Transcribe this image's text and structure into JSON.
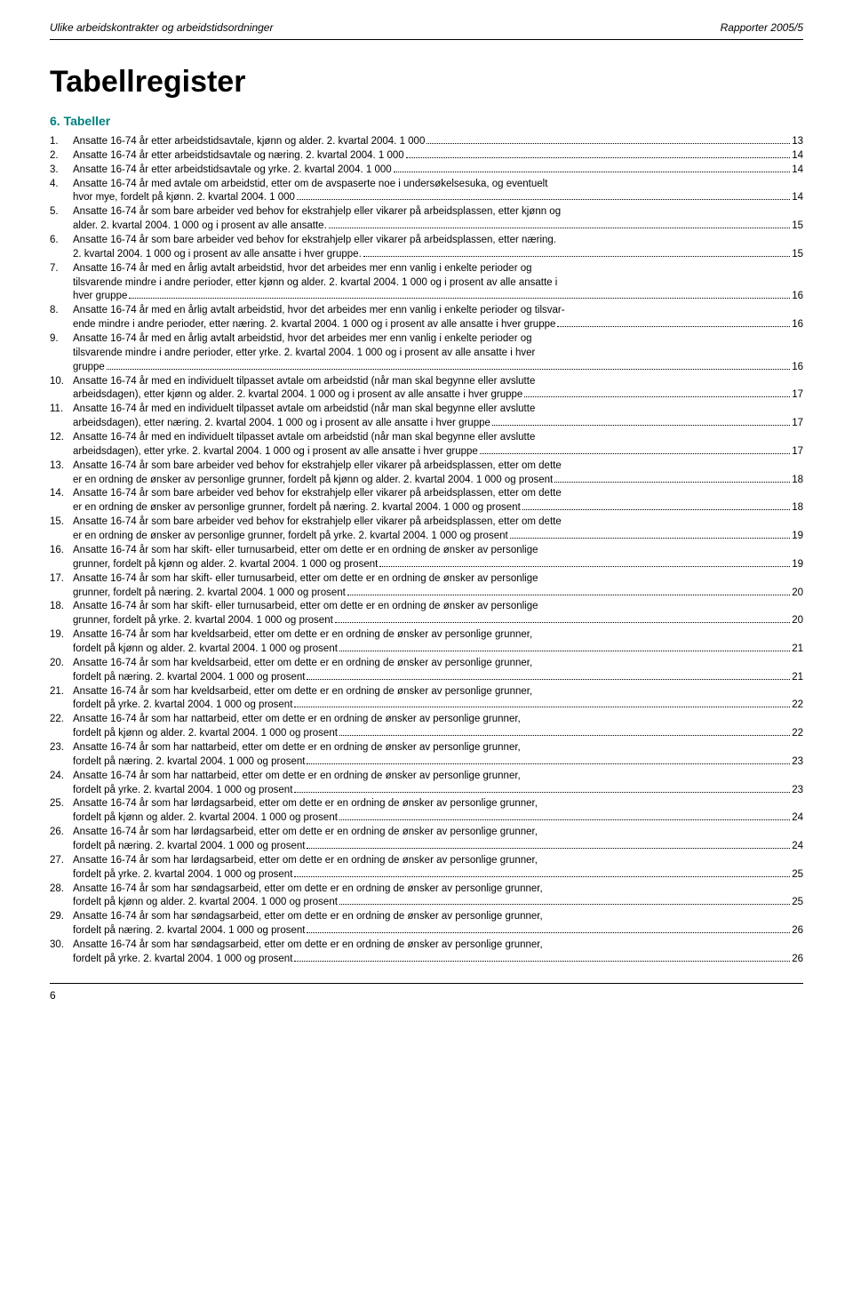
{
  "header": {
    "left": "Ulike arbeidskontrakter og arbeidstidsordninger",
    "right": "Rapporter 2005/5"
  },
  "title": "Tabellregister",
  "section_heading": "6.   Tabeller",
  "page_number": "6",
  "entries": [
    {
      "num": "1.",
      "lines": [
        "Ansatte 16-74 år etter arbeidstidsavtale, kjønn og alder. 2. kvartal 2004. 1 000"
      ],
      "page": "13"
    },
    {
      "num": "2.",
      "lines": [
        "Ansatte 16-74 år etter arbeidstidsavtale og næring. 2. kvartal 2004. 1 000"
      ],
      "page": "14"
    },
    {
      "num": "3.",
      "lines": [
        "Ansatte 16-74 år etter arbeidstidsavtale og yrke. 2. kvartal 2004. 1 000"
      ],
      "page": "14"
    },
    {
      "num": "4.",
      "lines": [
        "Ansatte 16-74 år med avtale om arbeidstid, etter om de avspaserte noe i undersøkelsesuka, og eventuelt",
        "hvor mye, fordelt på kjønn. 2. kvartal 2004. 1 000"
      ],
      "page": "14"
    },
    {
      "num": "5.",
      "lines": [
        "Ansatte 16-74 år som bare arbeider ved behov for ekstrahjelp eller vikarer på arbeidsplassen, etter kjønn og",
        "alder. 2. kvartal 2004. 1 000 og i prosent av alle ansatte."
      ],
      "page": "15"
    },
    {
      "num": "6.",
      "lines": [
        "Ansatte 16-74 år som bare arbeider ved behov for ekstrahjelp eller vikarer på arbeidsplassen, etter næring.",
        "2. kvartal 2004. 1 000 og i prosent av alle ansatte i hver gruppe."
      ],
      "page": "15"
    },
    {
      "num": "7.",
      "lines": [
        "Ansatte 16-74 år med en årlig avtalt arbeidstid, hvor det arbeides mer enn vanlig i enkelte perioder og",
        "tilsvarende mindre i andre perioder, etter kjønn og alder. 2. kvartal 2004. 1 000 og i prosent av alle ansatte i",
        "hver gruppe"
      ],
      "page": "16"
    },
    {
      "num": "8.",
      "lines": [
        "Ansatte 16-74 år med en årlig avtalt arbeidstid, hvor det arbeides mer enn vanlig i enkelte perioder og tilsvar-",
        "ende mindre i andre perioder, etter næring. 2. kvartal 2004. 1 000 og i prosent av alle ansatte i hver gruppe"
      ],
      "page": "16"
    },
    {
      "num": "9.",
      "lines": [
        "Ansatte 16-74 år med en årlig avtalt arbeidstid, hvor det arbeides mer enn vanlig i enkelte perioder og",
        "tilsvarende mindre i andre perioder, etter yrke. 2. kvartal 2004. 1 000 og i prosent av alle ansatte i hver",
        "gruppe"
      ],
      "page": "16"
    },
    {
      "num": "10.",
      "lines": [
        "Ansatte 16-74 år med en individuelt tilpasset avtale om arbeidstid (når man skal begynne eller avslutte",
        "arbeidsdagen), etter kjønn og alder. 2. kvartal 2004. 1 000 og i prosent av alle ansatte i hver gruppe"
      ],
      "page": "17"
    },
    {
      "num": "11.",
      "lines": [
        "Ansatte 16-74 år med en individuelt tilpasset avtale om arbeidstid (når man skal begynne eller avslutte",
        "arbeidsdagen), etter næring. 2. kvartal 2004. 1 000 og i prosent av alle ansatte i hver gruppe"
      ],
      "page": "17"
    },
    {
      "num": "12.",
      "lines": [
        "Ansatte 16-74 år med en individuelt tilpasset avtale om arbeidstid (når man skal begynne eller avslutte",
        "arbeidsdagen), etter yrke. 2. kvartal 2004. 1 000 og i prosent av alle ansatte i hver gruppe"
      ],
      "page": "17"
    },
    {
      "num": "13.",
      "lines": [
        "Ansatte 16-74 år som bare arbeider ved behov for ekstrahjelp eller vikarer på arbeidsplassen, etter om dette",
        "er en ordning de ønsker av personlige grunner, fordelt på kjønn og alder. 2. kvartal 2004. 1 000 og prosent"
      ],
      "page": "18"
    },
    {
      "num": "14.",
      "lines": [
        "Ansatte 16-74 år som bare arbeider ved behov for ekstrahjelp eller vikarer på arbeidsplassen, etter om dette",
        "er en ordning de ønsker av personlige grunner, fordelt på næring. 2. kvartal 2004. 1 000 og prosent"
      ],
      "page": "18"
    },
    {
      "num": "15.",
      "lines": [
        "Ansatte 16-74 år som bare arbeider ved behov for ekstrahjelp eller vikarer på arbeidsplassen, etter om dette",
        "er en ordning de ønsker av personlige grunner, fordelt på yrke. 2. kvartal 2004. 1 000 og prosent"
      ],
      "page": "19"
    },
    {
      "num": "16.",
      "lines": [
        "Ansatte 16-74 år som har skift- eller turnusarbeid, etter om dette er en ordning de ønsker av personlige",
        "grunner, fordelt på kjønn og alder. 2. kvartal 2004. 1 000 og prosent"
      ],
      "page": "19"
    },
    {
      "num": "17.",
      "lines": [
        "Ansatte 16-74 år som har skift- eller turnusarbeid, etter om dette er en ordning de ønsker av personlige",
        "grunner, fordelt på næring. 2. kvartal 2004. 1 000 og prosent"
      ],
      "page": "20"
    },
    {
      "num": "18.",
      "lines": [
        "Ansatte 16-74 år som har skift- eller turnusarbeid, etter om dette er en ordning de ønsker av personlige",
        "grunner, fordelt på yrke. 2. kvartal 2004. 1 000 og prosent"
      ],
      "page": "20"
    },
    {
      "num": "19.",
      "lines": [
        "Ansatte 16-74 år som har kveldsarbeid, etter om dette er en ordning de ønsker av personlige grunner,",
        "fordelt på kjønn og alder. 2. kvartal 2004. 1 000 og prosent"
      ],
      "page": "21"
    },
    {
      "num": "20.",
      "lines": [
        "Ansatte 16-74 år som har kveldsarbeid, etter om dette er en ordning de ønsker av personlige grunner,",
        "fordelt på næring. 2. kvartal 2004. 1 000 og prosent"
      ],
      "page": "21"
    },
    {
      "num": "21.",
      "lines": [
        "Ansatte 16-74 år som har kveldsarbeid, etter om dette er en ordning de ønsker av personlige grunner,",
        "fordelt på yrke. 2. kvartal 2004. 1 000 og prosent"
      ],
      "page": "22"
    },
    {
      "num": "22.",
      "lines": [
        "Ansatte 16-74 år som har nattarbeid, etter om dette er en ordning de ønsker av personlige grunner,",
        "fordelt på kjønn og alder. 2. kvartal 2004. 1 000 og prosent"
      ],
      "page": "22"
    },
    {
      "num": "23.",
      "lines": [
        "Ansatte 16-74 år som har nattarbeid, etter om dette er en ordning de ønsker av personlige grunner,",
        "fordelt på næring. 2. kvartal 2004. 1 000 og prosent"
      ],
      "page": "23"
    },
    {
      "num": "24.",
      "lines": [
        "Ansatte 16-74 år som har nattarbeid, etter om dette er en ordning de ønsker av personlige grunner,",
        "fordelt på yrke. 2. kvartal 2004. 1 000 og prosent"
      ],
      "page": "23"
    },
    {
      "num": "25.",
      "lines": [
        "Ansatte 16-74 år som har lørdagsarbeid, etter om dette er en ordning de ønsker av personlige grunner,",
        "fordelt på kjønn og alder. 2. kvartal 2004. 1 000 og prosent"
      ],
      "page": "24"
    },
    {
      "num": "26.",
      "lines": [
        "Ansatte 16-74 år som har lørdagsarbeid, etter om dette er en ordning de ønsker av personlige grunner,",
        "fordelt på næring. 2. kvartal 2004. 1 000 og prosent"
      ],
      "page": "24"
    },
    {
      "num": "27.",
      "lines": [
        "Ansatte 16-74 år som har lørdagsarbeid, etter om dette er en ordning de ønsker av personlige grunner,",
        "fordelt på yrke. 2. kvartal 2004. 1 000 og prosent"
      ],
      "page": "25"
    },
    {
      "num": "28.",
      "lines": [
        "Ansatte 16-74 år som har søndagsarbeid, etter om dette er en ordning de ønsker av personlige grunner,",
        "fordelt på kjønn og alder. 2. kvartal 2004. 1 000 og prosent"
      ],
      "page": "25"
    },
    {
      "num": "29.",
      "lines": [
        "Ansatte 16-74 år som har søndagsarbeid, etter om dette er en ordning de ønsker av personlige grunner,",
        "fordelt på næring. 2. kvartal 2004. 1 000 og prosent"
      ],
      "page": "26"
    },
    {
      "num": "30.",
      "lines": [
        "Ansatte 16-74 år som har søndagsarbeid, etter om dette er en ordning de ønsker av personlige grunner,",
        "fordelt på yrke. 2. kvartal 2004. 1 000 og prosent"
      ],
      "page": "26"
    }
  ]
}
